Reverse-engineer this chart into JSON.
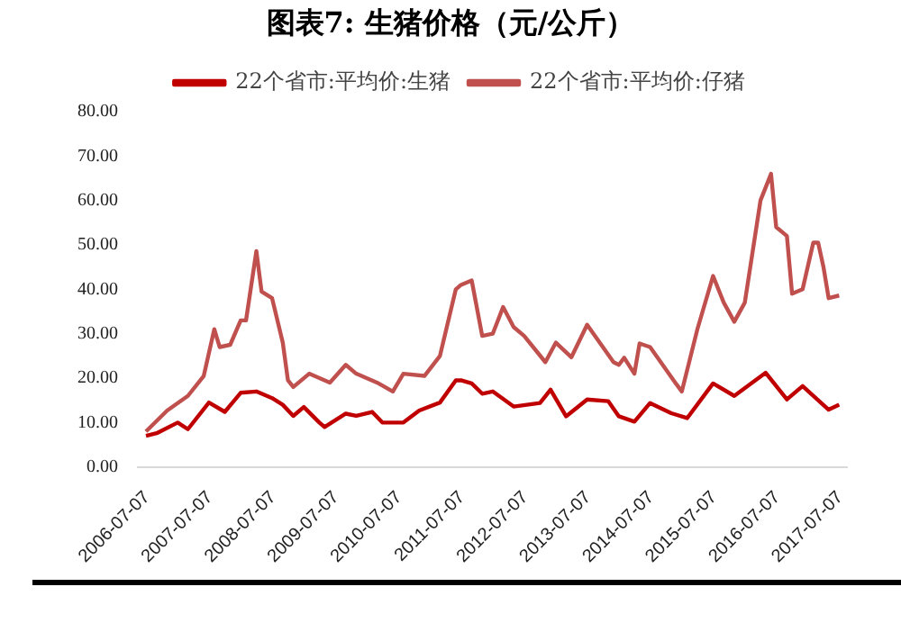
{
  "chart_data": {
    "type": "line",
    "title": "图表7:  生猪价格（元/公斤）",
    "series": [
      {
        "name": "22个省市:平均价:生猪",
        "color": "#c00000",
        "x": [
          "2006-07",
          "2006-09",
          "2007-01",
          "2007-03",
          "2007-07",
          "2007-10",
          "2008-01",
          "2008-04",
          "2008-07",
          "2008-09",
          "2008-11",
          "2009-01",
          "2009-04",
          "2009-05",
          "2009-09",
          "2009-11",
          "2010-02",
          "2010-04",
          "2010-08",
          "2010-11",
          "2011-03",
          "2011-06",
          "2011-07",
          "2011-09",
          "2011-11",
          "2012-01",
          "2012-05",
          "2012-10",
          "2012-12",
          "2013-03",
          "2013-07",
          "2013-11",
          "2014-01",
          "2014-04",
          "2014-07",
          "2014-11",
          "2015-02",
          "2015-07",
          "2015-11",
          "2016-05",
          "2016-09",
          "2016-12",
          "2017-05",
          "2017-07"
        ],
        "values": [
          7,
          7.6,
          10,
          8.5,
          14.5,
          12.4,
          16.7,
          17,
          15.5,
          14,
          11.5,
          13.5,
          10,
          9,
          12,
          11.5,
          12.4,
          10,
          10,
          12.7,
          14.5,
          19.5,
          19.5,
          18.8,
          16.5,
          17,
          13.6,
          14.4,
          17.4,
          11.4,
          15.2,
          14.8,
          11.4,
          10.2,
          14.4,
          12.1,
          11,
          18.8,
          16,
          21.2,
          15.2,
          18.2,
          12.9,
          14
        ]
      },
      {
        "name": "22个省市:平均价:仔猪",
        "color": "#c0504d",
        "x": [
          "2006-07",
          "2006-11",
          "2007-03",
          "2007-06",
          "2007-08",
          "2007-09",
          "2007-11",
          "2008-01",
          "2008-02",
          "2008-04",
          "2008-05",
          "2008-07",
          "2008-09",
          "2008-10",
          "2008-11",
          "2009-02",
          "2009-06",
          "2009-09",
          "2009-11",
          "2010-03",
          "2010-06",
          "2010-08",
          "2010-12",
          "2011-03",
          "2011-06",
          "2011-07",
          "2011-09",
          "2011-11",
          "2012-01",
          "2012-03",
          "2012-05",
          "2012-07",
          "2012-11",
          "2013-01",
          "2013-04",
          "2013-07",
          "2013-12",
          "2014-01",
          "2014-02",
          "2014-04",
          "2014-05",
          "2014-07",
          "2014-12",
          "2015-01",
          "2015-04",
          "2015-07",
          "2015-09",
          "2015-11",
          "2016-01",
          "2016-04",
          "2016-06",
          "2016-07",
          "2016-09",
          "2016-10",
          "2016-12",
          "2017-02",
          "2017-03",
          "2017-04",
          "2017-05",
          "2017-07"
        ],
        "values": [
          8,
          12.7,
          16,
          20.5,
          31,
          27,
          27.5,
          33,
          33,
          48.6,
          39.5,
          38,
          28,
          19.5,
          18,
          21,
          19,
          23,
          21,
          19,
          17,
          21,
          20.5,
          25,
          40,
          41,
          42,
          29.5,
          30,
          36,
          31.5,
          29.5,
          23.6,
          28,
          24.7,
          32,
          23.6,
          23,
          24.6,
          21,
          27.8,
          27,
          18.6,
          17,
          31,
          43,
          37,
          32.7,
          37,
          60,
          66,
          54,
          52,
          39,
          40,
          50.5,
          50.5,
          45,
          38,
          38.6
        ]
      }
    ],
    "xlim": [
      "2006-05-15",
      "2017-08-15"
    ],
    "xticks": [
      "2006-07-07",
      "2007-07-07",
      "2008-07-07",
      "2009-07-07",
      "2010-07-07",
      "2011-07-07",
      "2012-07-07",
      "2013-07-07",
      "2014-07-07",
      "2015-07-07",
      "2016-07-07",
      "2017-07-07"
    ],
    "ylim": [
      0,
      80
    ],
    "yticks": [
      {
        "value": 0,
        "label": "0.00"
      },
      {
        "value": 10,
        "label": "10.00"
      },
      {
        "value": 20,
        "label": "20.00"
      },
      {
        "value": 30,
        "label": "30.00"
      },
      {
        "value": 40,
        "label": "40.00"
      },
      {
        "value": 50,
        "label": "50.00"
      },
      {
        "value": 60,
        "label": "60.00"
      },
      {
        "value": 70,
        "label": "70.00"
      },
      {
        "value": 80,
        "label": "80.00"
      }
    ],
    "grid": false,
    "legend": "top",
    "marker": "none",
    "line_style": "solid"
  }
}
